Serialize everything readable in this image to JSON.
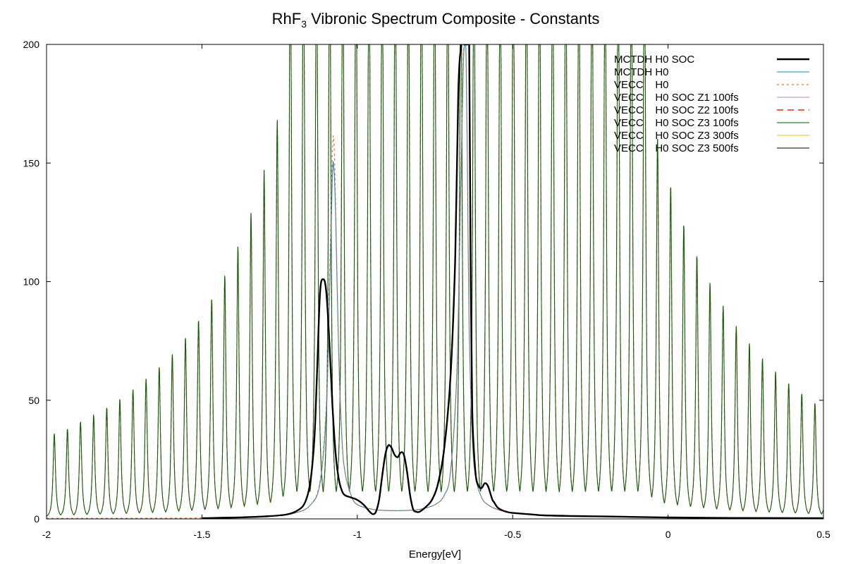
{
  "chart_data": {
    "type": "line",
    "title": "RhF3 Vibronic Spectrum Composite - Constants",
    "title_main": "RhF",
    "title_sub": "3",
    "title_rest": " Vibronic Spectrum Composite - Constants",
    "xlabel": "Energy[eV]",
    "ylabel": "",
    "xlim": [
      -2,
      0.5
    ],
    "ylim": [
      0,
      200
    ],
    "xticks": [
      {
        "value": -2,
        "label": "-2"
      },
      {
        "value": -1.5,
        "label": "-1.5"
      },
      {
        "value": -1,
        "label": "-1"
      },
      {
        "value": -0.5,
        "label": "-0.5"
      },
      {
        "value": 0,
        "label": "0"
      },
      {
        "value": 0.5,
        "label": "0.5"
      }
    ],
    "yticks": [
      {
        "value": 0,
        "label": "0"
      },
      {
        "value": 50,
        "label": "50"
      },
      {
        "value": 100,
        "label": "100"
      },
      {
        "value": 150,
        "label": "150"
      },
      {
        "value": 200,
        "label": "200"
      }
    ],
    "legend_position": "top-right",
    "series": [
      {
        "name": "MCTDH H0 SOC",
        "color": "#000000",
        "style": "solid-thick",
        "x": [
          -1.5,
          -1.3,
          -1.2,
          -1.16,
          -1.14,
          -1.13,
          -1.12,
          -1.11,
          -1.1,
          -1.09,
          -1.08,
          -1.07,
          -1.06,
          -1.05,
          -1.04,
          -1.02,
          -1.0,
          -0.98,
          -0.96,
          -0.95,
          -0.94,
          -0.93,
          -0.92,
          -0.91,
          -0.9,
          -0.89,
          -0.88,
          -0.87,
          -0.86,
          -0.85,
          -0.84,
          -0.83,
          -0.82,
          -0.81,
          -0.8,
          -0.78,
          -0.76,
          -0.74,
          -0.72,
          -0.7,
          -0.685,
          -0.675,
          -0.665,
          -0.657,
          -0.65,
          -0.645,
          -0.64,
          -0.635,
          -0.63,
          -0.62,
          -0.61,
          -0.6,
          -0.59,
          -0.58,
          -0.57,
          -0.565,
          -0.56,
          -0.55,
          -0.54,
          -0.52,
          -0.5,
          -0.45,
          -0.4,
          -0.3,
          -0.2,
          -0.1,
          0.0,
          0.2,
          0.5
        ],
        "y": [
          0.3,
          1,
          3,
          10,
          30,
          60,
          95,
          101,
          96,
          75,
          48,
          28,
          17,
          12,
          10,
          9,
          8,
          6,
          3,
          2,
          3,
          8,
          18,
          27,
          31,
          30,
          27,
          26,
          28,
          27,
          20,
          10,
          4,
          3,
          3,
          5,
          8,
          15,
          30,
          60,
          110,
          180,
          200,
          200,
          200,
          200,
          200,
          100,
          45,
          20,
          14,
          13,
          15,
          14,
          10,
          8,
          7,
          5,
          4,
          3,
          2.5,
          2,
          1.5,
          1.2,
          1,
          0.8,
          0.6,
          0.4,
          0.3
        ]
      },
      {
        "name": "MCTDH H0",
        "color": "#1a84c8",
        "style": "solid",
        "x": [
          -1.5,
          -1.3,
          -1.2,
          -1.15,
          -1.12,
          -1.1,
          -1.09,
          -1.08,
          -1.075,
          -1.07,
          -1.06,
          -1.05,
          -1.04,
          -1.02,
          -1.0,
          -0.95,
          -0.9,
          -0.85,
          -0.8,
          -0.75,
          -0.72,
          -0.7,
          -0.68,
          -0.67,
          -0.66,
          -0.655,
          -0.65,
          -0.645,
          -0.64,
          -0.63,
          -0.62,
          -0.6,
          -0.58,
          -0.55,
          -0.5,
          -0.4,
          -0.3,
          -0.2,
          0.0,
          0.2,
          0.5
        ],
        "y": [
          0.4,
          1,
          2.5,
          6,
          15,
          45,
          90,
          145,
          147,
          130,
          70,
          35,
          20,
          10,
          6,
          4,
          3.5,
          3.5,
          4,
          6,
          10,
          20,
          60,
          120,
          185,
          200,
          195,
          140,
          80,
          35,
          18,
          9,
          6,
          4,
          2.5,
          1.5,
          1.1,
          0.9,
          0.6,
          0.4,
          0.3
        ]
      },
      {
        "name": "VECC    H0",
        "color": "#e8702a",
        "style": "dotted",
        "x": [
          -2.0,
          -1.5,
          -1.3,
          -1.2,
          -1.15,
          -1.12,
          -1.1,
          -1.09,
          -1.08,
          -1.075,
          -1.07,
          -1.06,
          -1.05,
          -1.04,
          -1.02,
          -1.0,
          -0.95,
          -0.9,
          -0.85,
          -0.8,
          -0.75,
          -0.72,
          -0.7,
          -0.68,
          -0.67,
          -0.66,
          -0.655,
          -0.65,
          -0.645,
          -0.64,
          -0.63,
          -0.62,
          -0.6,
          -0.58,
          -0.55,
          -0.5,
          -0.4,
          -0.3,
          -0.2,
          0.0,
          0.2,
          0.5
        ],
        "y": [
          0.2,
          0.4,
          1,
          2.5,
          6,
          16,
          48,
          98,
          155,
          158,
          135,
          72,
          36,
          20,
          10,
          6,
          4,
          3.5,
          3.5,
          4,
          6,
          10,
          20,
          62,
          125,
          190,
          200,
          198,
          145,
          82,
          36,
          18,
          9,
          6,
          4,
          2.5,
          1.5,
          1.1,
          0.9,
          0.6,
          0.4,
          0.3
        ]
      },
      {
        "name": "VECC    H0 SOC Z1 100fs",
        "color": "#c27acf",
        "style": "solid"
      },
      {
        "name": "VECC    H0 SOC Z2 100fs",
        "color": "#f06040",
        "style": "dashed"
      },
      {
        "name": "VECC    H0 SOC Z3 100fs",
        "color": "#006400",
        "style": "solid"
      },
      {
        "name": "VECC    H0 SOC Z3 300fs",
        "color": "#e8c000",
        "style": "solid"
      },
      {
        "name": "VECC    H0 SOC Z3 500fs",
        "color": "#000000",
        "style": "solid"
      }
    ],
    "comb": {
      "description_of": "VECC H0 SOC Z1/Z2/Z3 100fs spectra",
      "spacing": 0.0422,
      "first_peak_x": -1.975,
      "center_x": -0.65,
      "peak_heights_left": [
        [
          -1.975,
          36
        ],
        [
          -1.933,
          38
        ],
        [
          -1.89,
          41
        ],
        [
          -1.848,
          44
        ],
        [
          -1.806,
          47
        ],
        [
          -1.764,
          50.5
        ],
        [
          -1.722,
          54.5
        ],
        [
          -1.68,
          59
        ],
        [
          -1.637,
          64
        ],
        [
          -1.595,
          69.5
        ],
        [
          -1.553,
          76.5
        ],
        [
          -1.511,
          84
        ],
        [
          -1.469,
          93
        ],
        [
          -1.426,
          103
        ],
        [
          -1.384,
          115
        ],
        [
          -1.342,
          129
        ],
        [
          -1.3,
          147
        ],
        [
          -1.258,
          168
        ],
        [
          -1.216,
          194
        ]
      ],
      "peak_heights_right": [
        [
          -0.04,
          164
        ],
        [
          -0.002,
          145
        ],
        [
          0.04,
          128
        ],
        [
          0.083,
          114
        ],
        [
          0.125,
          102
        ],
        [
          0.167,
          92
        ],
        [
          0.209,
          83
        ],
        [
          0.252,
          75.5
        ],
        [
          0.294,
          69
        ],
        [
          0.336,
          63.5
        ],
        [
          0.378,
          58.5
        ],
        [
          0.42,
          54
        ],
        [
          0.462,
          50
        ],
        [
          0.49,
          47
        ]
      ]
    }
  }
}
